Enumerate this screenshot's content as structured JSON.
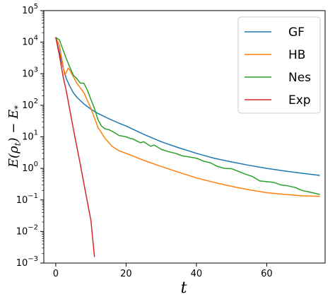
{
  "chart_data": {
    "type": "line",
    "title": "",
    "xlabel": "t",
    "ylabel": "E(ρ_t) − E_*",
    "ylabel_parts": {
      "main": "E(ρ",
      "sub1": "t",
      "mid": ") − E",
      "sub2": "*"
    },
    "xlim": [
      -3.4,
      76.6
    ],
    "ylim": [
      0.001,
      100000
    ],
    "yscale": "log",
    "x_ticks": [
      0,
      20,
      40,
      60
    ],
    "x_tick_labels": [
      "0",
      "20",
      "40",
      "60"
    ],
    "y_ticks": [
      0.001,
      0.01,
      0.1,
      1,
      10,
      100,
      1000,
      10000,
      100000
    ],
    "y_tick_labels": [
      {
        "base": "10",
        "exp": "−3"
      },
      {
        "base": "10",
        "exp": "−2"
      },
      {
        "base": "10",
        "exp": "−1"
      },
      {
        "base": "10",
        "exp": "0"
      },
      {
        "base": "10",
        "exp": "1"
      },
      {
        "base": "10",
        "exp": "2"
      },
      {
        "base": "10",
        "exp": "3"
      },
      {
        "base": "10",
        "exp": "4"
      },
      {
        "base": "10",
        "exp": "5"
      }
    ],
    "grid": false,
    "legend_position": "top-right",
    "series": [
      {
        "name": "GF",
        "color": "#1f77b4",
        "x": [
          0,
          1,
          2,
          3,
          4,
          5,
          6,
          8,
          10,
          12,
          15,
          18,
          20,
          25,
          30,
          35,
          40,
          45,
          50,
          55,
          60,
          65,
          70,
          75
        ],
        "y": [
          14000,
          5000,
          1700,
          700,
          400,
          250,
          180,
          110,
          75,
          55,
          38,
          27,
          22,
          12,
          7,
          4.5,
          3,
          2.1,
          1.6,
          1.25,
          1.0,
          0.83,
          0.7,
          0.6
        ]
      },
      {
        "name": "HB",
        "color": "#ff7f0e",
        "x": [
          0,
          1,
          2,
          2.5,
          3,
          3.5,
          4,
          5,
          6,
          8,
          10,
          12,
          14,
          16,
          18,
          20,
          25,
          30,
          35,
          40,
          45,
          50,
          55,
          60,
          65,
          70,
          75
        ],
        "y": [
          14000,
          8000,
          2000,
          900,
          1100,
          1500,
          1300,
          800,
          500,
          250,
          80,
          20,
          9,
          5,
          3.6,
          3,
          1.8,
          1.15,
          0.75,
          0.5,
          0.36,
          0.27,
          0.21,
          0.17,
          0.15,
          0.135,
          0.13
        ]
      },
      {
        "name": "Nes",
        "color": "#2ca02c",
        "x": [
          0,
          1,
          2,
          3,
          4,
          5,
          6,
          7,
          8,
          9,
          10,
          11,
          12,
          13,
          14,
          15,
          16,
          17,
          18,
          19,
          20,
          21,
          22,
          24,
          25,
          27,
          28,
          30,
          32,
          34,
          36,
          38,
          40,
          42,
          44,
          46,
          48,
          50,
          52,
          54,
          56,
          58,
          60,
          62,
          64,
          66,
          68,
          70,
          72,
          75
        ],
        "y": [
          14000,
          12000,
          6000,
          3000,
          1600,
          900,
          700,
          500,
          500,
          300,
          150,
          80,
          35,
          22,
          18,
          17,
          15,
          13,
          11,
          10.5,
          10,
          9,
          8.5,
          6.5,
          7,
          5,
          5.5,
          4,
          3.4,
          3,
          2.5,
          2.3,
          2.1,
          1.7,
          1.5,
          1.15,
          1.0,
          0.98,
          0.8,
          0.65,
          0.55,
          0.4,
          0.38,
          0.36,
          0.3,
          0.28,
          0.25,
          0.2,
          0.18,
          0.15
        ]
      },
      {
        "name": "Exp",
        "color": "#d62728",
        "x": [
          0,
          1,
          2,
          3,
          4,
          5,
          6,
          7,
          8,
          9,
          10,
          11
        ],
        "y": [
          14000,
          4000,
          900,
          280,
          70,
          18,
          4.8,
          1.3,
          0.33,
          0.085,
          0.022,
          0.0016
        ]
      }
    ]
  }
}
